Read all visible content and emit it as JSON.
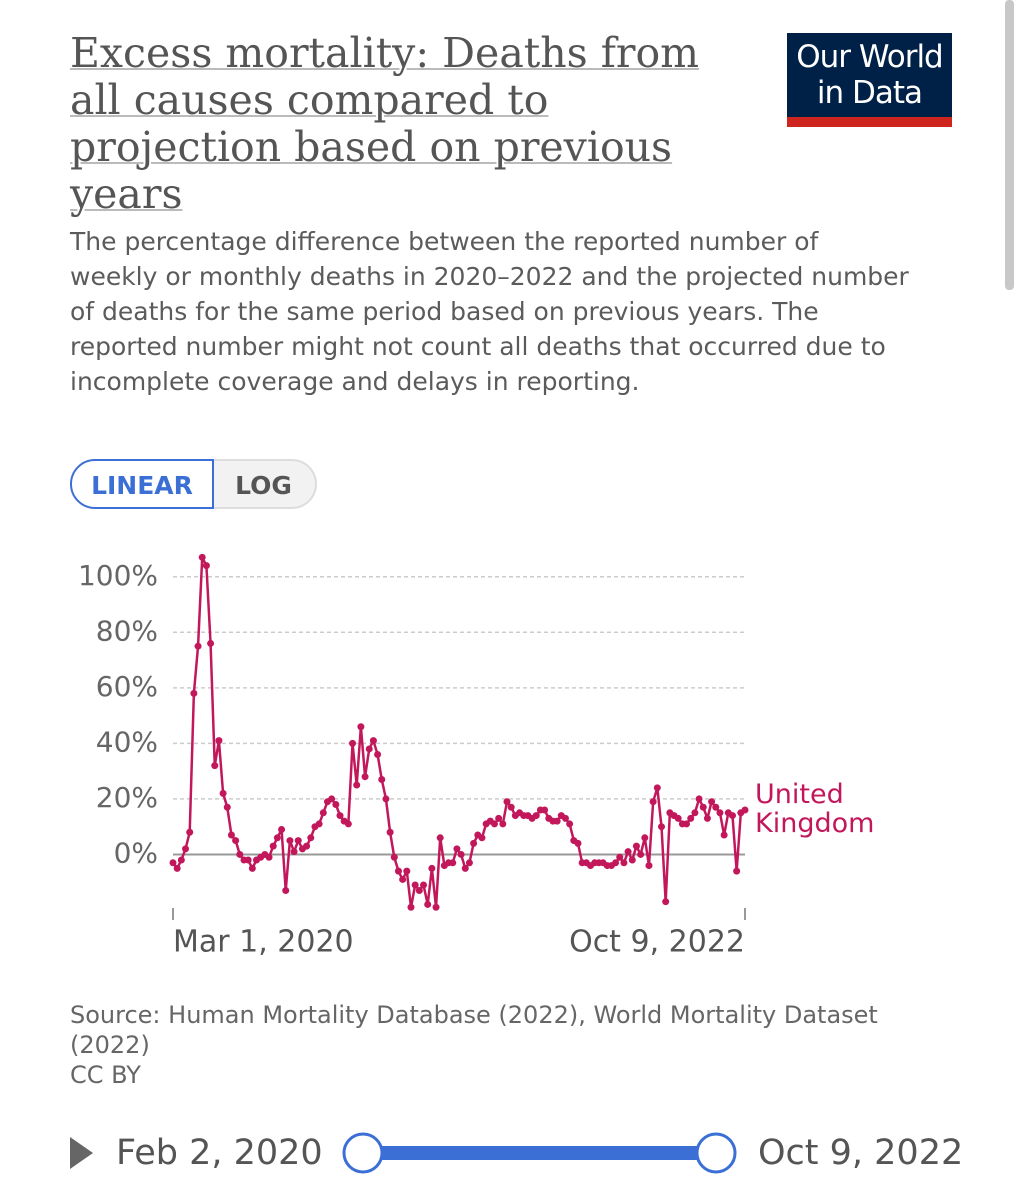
{
  "chart_data": {
    "type": "line",
    "title": "Excess mortality: Deaths from all causes compared to projection based on previous years",
    "subtitle": "The percentage difference between the reported number of weekly or monthly deaths in 2020–2022 and the projected number of deaths for the same period based on previous years. The reported number might not count all deaths that occurred due to incomplete coverage and delays in reporting.",
    "categories": [
      "Mar 1, 2020",
      null,
      null,
      null,
      null,
      null,
      null,
      null,
      null,
      null,
      null,
      null,
      null,
      null,
      null,
      null,
      null,
      null,
      null,
      null,
      null,
      null,
      null,
      null,
      null,
      null,
      null,
      null,
      null,
      null,
      null,
      null,
      null,
      null,
      null,
      null,
      null,
      null,
      null,
      null,
      null,
      null,
      null,
      null,
      null,
      null,
      null,
      null,
      null,
      null,
      null,
      null,
      null,
      null,
      null,
      null,
      null,
      null,
      null,
      null,
      null,
      null,
      null,
      null,
      null,
      null,
      null,
      null,
      null,
      null,
      null,
      null,
      null,
      null,
      null,
      null,
      null,
      null,
      null,
      null,
      null,
      null,
      null,
      null,
      null,
      null,
      null,
      null,
      null,
      null,
      null,
      null,
      null,
      null,
      null,
      null,
      null,
      null,
      null,
      null,
      null,
      null,
      null,
      null,
      null,
      null,
      null,
      null,
      null,
      null,
      null,
      null,
      null,
      null,
      null,
      null,
      null,
      null,
      null,
      null,
      null,
      null,
      null,
      null,
      null,
      null,
      null,
      null,
      null,
      null,
      null,
      null,
      null,
      null,
      null,
      null,
      null,
      "Oct 9, 2022"
    ],
    "series": [
      {
        "name": "United Kingdom",
        "color": "#c2185b",
        "values": [
          -3,
          -5,
          -2,
          2,
          8,
          58,
          75,
          107,
          104,
          76,
          32,
          41,
          22,
          17,
          7,
          5,
          0,
          -2,
          -2,
          -5,
          -2,
          -1,
          0,
          -1,
          3,
          6,
          9,
          -13,
          5,
          1,
          5,
          2,
          3,
          6,
          10,
          11,
          15,
          19,
          20,
          18,
          14,
          12,
          11,
          40,
          25,
          46,
          28,
          38,
          41,
          36,
          27,
          20,
          8,
          -1,
          -6,
          -9,
          -6,
          -19,
          -11,
          -13,
          -11,
          -18,
          -5,
          -19,
          6,
          -4,
          -3,
          -3,
          2,
          0,
          -5,
          -3,
          4,
          7,
          6,
          11,
          12,
          11,
          13,
          11,
          19,
          17,
          14,
          15,
          14,
          14,
          13,
          14,
          16,
          16,
          13,
          12,
          12,
          14,
          13,
          11,
          5,
          4,
          -3,
          -3,
          -4,
          -3,
          -3,
          -3,
          -4,
          -4,
          -3,
          -1,
          -3,
          1,
          -2,
          3,
          0,
          6,
          -4,
          19,
          24,
          10,
          -17,
          15,
          14,
          13,
          11,
          11,
          13,
          15,
          20,
          17,
          13,
          19,
          17,
          15,
          7,
          15,
          14,
          -6,
          15,
          16
        ]
      }
    ],
    "ylim": [
      -20,
      110
    ],
    "yticks": [
      {
        "value": 0,
        "label": "0%"
      },
      {
        "value": 20,
        "label": "20%"
      },
      {
        "value": 40,
        "label": "40%"
      },
      {
        "value": 60,
        "label": "60%"
      },
      {
        "value": 80,
        "label": "80%"
      },
      {
        "value": 100,
        "label": "100%"
      }
    ],
    "grid": true,
    "source": "Source: Human Mortality Database (2022), World Mortality Dataset (2022)",
    "license": "CC BY"
  },
  "logo": "Our World in Data",
  "controls": [
    "LINEAR",
    "LOG"
  ],
  "timeline": {
    "start": "Feb 2, 2020",
    "end": "Oct 9, 2022"
  }
}
